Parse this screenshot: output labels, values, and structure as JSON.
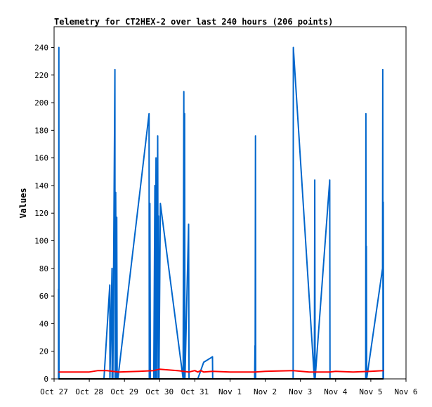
{
  "chart_data": {
    "type": "line",
    "title": "Telemetry for CT2HEX-2 over last 240 hours (206 points)",
    "xlabel": "",
    "ylabel": "Values",
    "xlim": [
      "2023-10-27",
      "2023-11-06"
    ],
    "ylim": [
      0,
      255
    ],
    "x_ticks": [
      "Oct 27",
      "Oct 28",
      "Oct 29",
      "Oct 30",
      "Oct 31",
      "Nov 1",
      "Nov 2",
      "Nov 3",
      "Nov 4",
      "Nov 5",
      "Nov 6"
    ],
    "y_ticks": [
      0,
      20,
      40,
      60,
      80,
      100,
      120,
      140,
      160,
      180,
      200,
      220,
      240
    ],
    "grid": false,
    "legend": "none",
    "series": [
      {
        "color": "#0066cc",
        "points": [
          [
            "2023-10-27 03:00",
            0
          ],
          [
            "2023-10-27 03:05",
            65
          ],
          [
            "2023-10-27 03:10",
            0
          ],
          [
            "2023-10-27 03:15",
            240
          ],
          [
            "2023-10-27 03:20",
            0
          ],
          [
            "2023-10-28 10:00",
            0
          ],
          [
            "2023-10-28 14:00",
            68
          ],
          [
            "2023-10-28 14:05",
            0
          ],
          [
            "2023-10-28 15:30",
            80
          ],
          [
            "2023-10-28 15:35",
            0
          ],
          [
            "2023-10-28 16:00",
            40
          ],
          [
            "2023-10-28 16:05",
            0
          ],
          [
            "2023-10-28 17:30",
            224
          ],
          [
            "2023-10-28 17:35",
            0
          ],
          [
            "2023-10-28 18:00",
            135
          ],
          [
            "2023-10-28 18:30",
            0
          ],
          [
            "2023-10-28 18:45",
            117
          ],
          [
            "2023-10-28 19:00",
            0
          ],
          [
            "2023-10-28 19:30",
            0
          ],
          [
            "2023-10-29 16:45",
            192
          ],
          [
            "2023-10-29 16:55",
            0
          ],
          [
            "2023-10-29 17:20",
            127
          ],
          [
            "2023-10-29 17:40",
            0
          ],
          [
            "2023-10-29 20:00",
            0
          ],
          [
            "2023-10-29 20:45",
            140
          ],
          [
            "2023-10-29 21:00",
            0
          ],
          [
            "2023-10-29 21:30",
            160
          ],
          [
            "2023-10-29 21:50",
            0
          ],
          [
            "2023-10-29 22:40",
            176
          ],
          [
            "2023-10-29 23:00",
            0
          ],
          [
            "2023-10-29 23:10",
            118
          ],
          [
            "2023-10-29 23:30",
            0
          ],
          [
            "2023-10-30 00:30",
            127
          ],
          [
            "2023-10-30 16:00",
            0
          ],
          [
            "2023-10-30 16:30",
            208
          ],
          [
            "2023-10-30 16:40",
            0
          ],
          [
            "2023-10-30 17:00",
            192
          ],
          [
            "2023-10-30 17:15",
            0
          ],
          [
            "2023-10-30 19:45",
            112
          ],
          [
            "2023-10-30 20:00",
            0
          ],
          [
            "2023-10-31 02:00",
            0
          ],
          [
            "2023-10-31 06:00",
            12
          ],
          [
            "2023-10-31 12:00",
            16
          ],
          [
            "2023-10-31 12:10",
            0
          ],
          [
            "2023-11-01 16:45",
            0
          ],
          [
            "2023-11-01 17:00",
            24
          ],
          [
            "2023-11-01 17:05",
            0
          ],
          [
            "2023-11-01 17:20",
            176
          ],
          [
            "2023-11-01 17:30",
            0
          ],
          [
            "2023-11-02 19:00",
            0
          ],
          [
            "2023-11-02 19:10",
            240
          ],
          [
            "2023-11-03 09:30",
            0
          ],
          [
            "2023-11-03 09:45",
            144
          ],
          [
            "2023-11-03 10:00",
            0
          ],
          [
            "2023-11-03 20:00",
            144
          ],
          [
            "2023-11-03 20:10",
            0
          ],
          [
            "2023-11-04 20:30",
            0
          ],
          [
            "2023-11-04 20:40",
            192
          ],
          [
            "2023-11-04 20:50",
            0
          ],
          [
            "2023-11-04 21:00",
            96
          ],
          [
            "2023-11-04 21:10",
            0
          ],
          [
            "2023-11-05 08:00",
            80
          ],
          [
            "2023-11-05 08:10",
            224
          ],
          [
            "2023-11-05 08:20",
            0
          ],
          [
            "2023-11-05 08:30",
            128
          ],
          [
            "2023-11-05 08:40",
            0
          ]
        ]
      },
      {
        "color": "#ff0000",
        "points": [
          [
            "2023-10-27 03:00",
            5
          ],
          [
            "2023-10-28 00:00",
            5
          ],
          [
            "2023-10-28 06:00",
            6
          ],
          [
            "2023-10-28 12:00",
            6
          ],
          [
            "2023-10-28 20:00",
            5
          ],
          [
            "2023-10-29 10:00",
            5.5
          ],
          [
            "2023-10-29 20:00",
            6
          ],
          [
            "2023-10-30 00:00",
            7
          ],
          [
            "2023-10-30 12:00",
            6
          ],
          [
            "2023-10-30 20:00",
            5
          ],
          [
            "2023-10-31 00:00",
            6
          ],
          [
            "2023-10-31 02:00",
            5
          ],
          [
            "2023-10-31 04:00",
            6
          ],
          [
            "2023-10-31 06:00",
            5
          ],
          [
            "2023-10-31 12:00",
            5.5
          ],
          [
            "2023-11-01 00:00",
            5
          ],
          [
            "2023-11-01 17:00",
            5
          ],
          [
            "2023-11-02 00:00",
            5.5
          ],
          [
            "2023-11-02 19:00",
            6
          ],
          [
            "2023-11-03 06:00",
            5
          ],
          [
            "2023-11-03 20:00",
            5
          ],
          [
            "2023-11-04 00:00",
            5.5
          ],
          [
            "2023-11-04 12:00",
            5
          ],
          [
            "2023-11-05 00:00",
            5.5
          ],
          [
            "2023-11-05 08:40",
            6
          ]
        ]
      },
      {
        "color": "#000000",
        "points": [
          [
            "2023-10-27 03:00",
            0
          ],
          [
            "2023-11-05 08:40",
            0
          ]
        ]
      }
    ]
  }
}
